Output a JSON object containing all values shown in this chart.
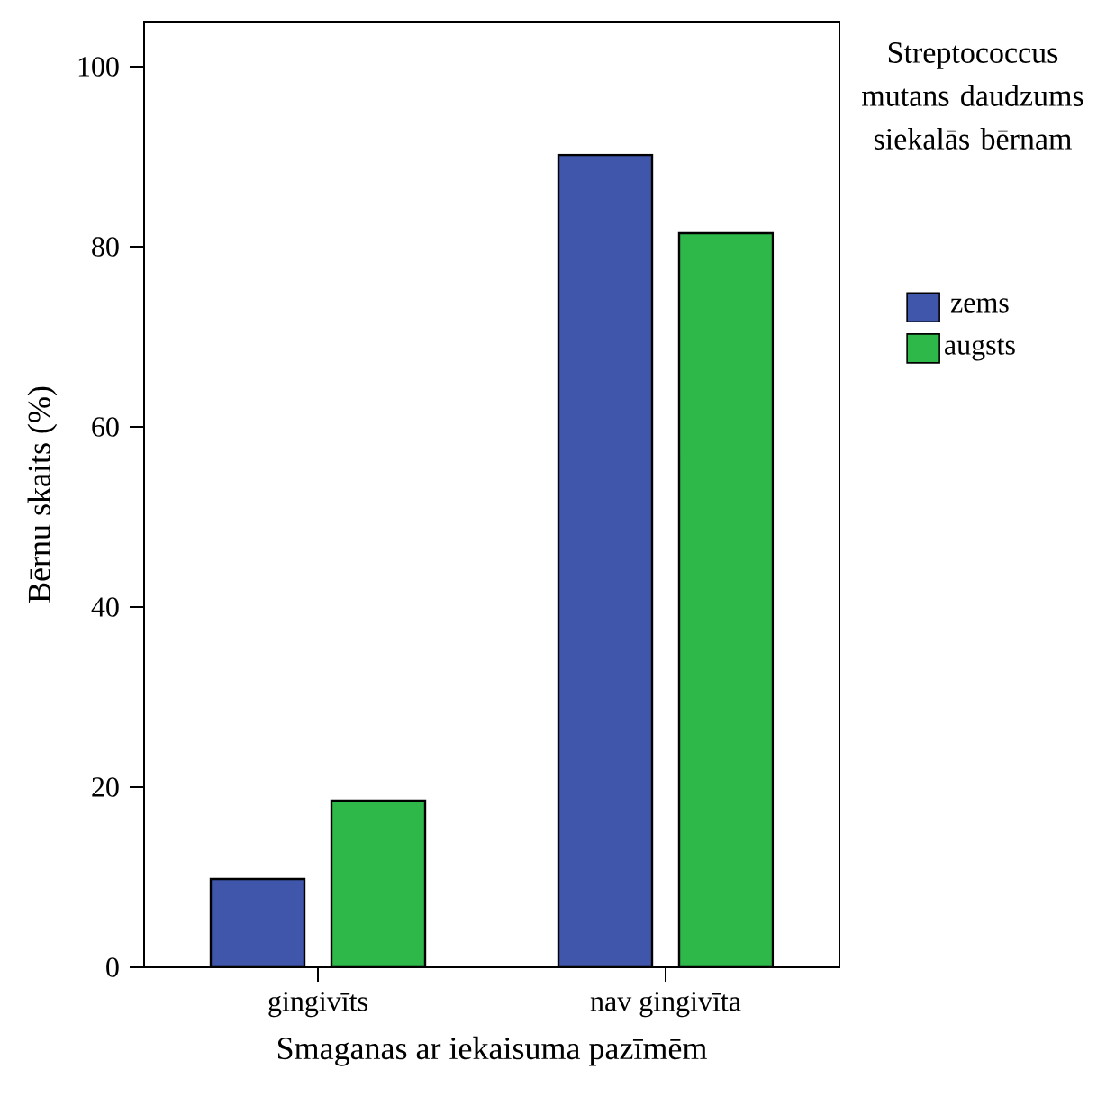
{
  "chart_data": {
    "type": "bar",
    "xlabel": "Smaganas ar iekaisuma pazīmēm",
    "ylabel": "Bērnu skaits (%)",
    "legend_title": "Streptococcus mutans daudzums siekalās bērnam",
    "categories": [
      "gingivīts",
      "nav gingivīta"
    ],
    "series": [
      {
        "name": "zems",
        "color": "#3f56aa",
        "values": [
          9.8,
          90.2
        ]
      },
      {
        "name": "augsts",
        "color": "#2fb84a",
        "values": [
          18.5,
          81.5
        ]
      }
    ],
    "ylim": [
      0,
      105
    ],
    "yticks": [
      0,
      20,
      40,
      60,
      80,
      100
    ],
    "grid": false,
    "legend": "right"
  }
}
